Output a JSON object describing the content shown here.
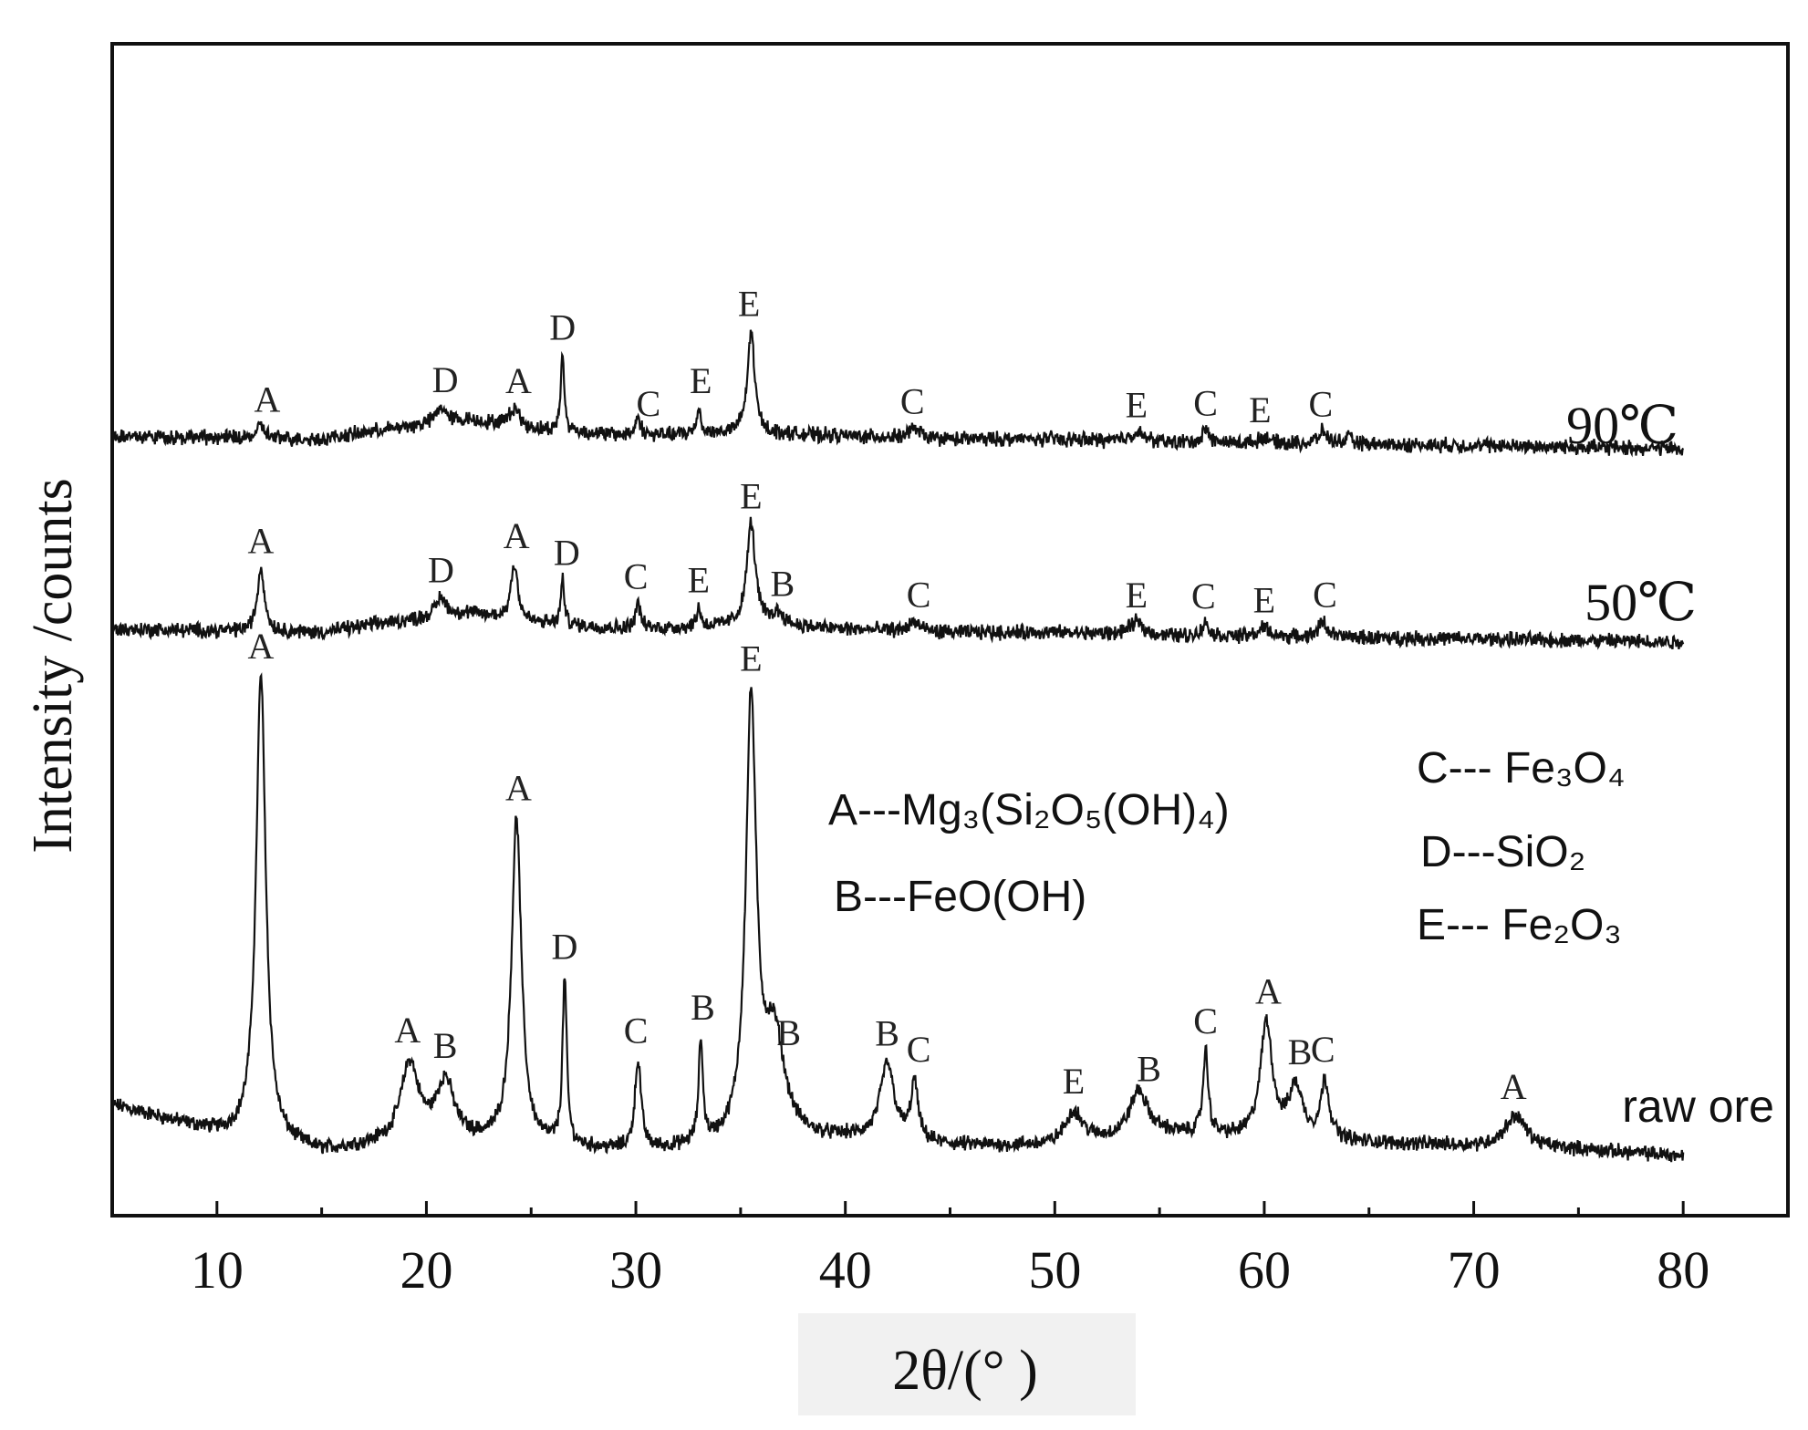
{
  "chart_data": {
    "type": "line",
    "xlabel": "2θ/(°  )",
    "ylabel": "Intensity /counts",
    "xlim": [
      5,
      85
    ],
    "xticks": [
      10,
      20,
      30,
      40,
      50,
      60,
      70,
      80
    ],
    "minor_xticks": [
      15,
      25,
      35,
      45,
      55,
      65,
      75
    ],
    "grid": false,
    "legend": [
      {
        "text": "A---Mg₃(Si₂O₅(OH)₄)"
      },
      {
        "text": "B---FeO(OH)"
      },
      {
        "text": "C--- Fe₃O₄"
      },
      {
        "text": "D---SiO₂"
      },
      {
        "text": "E--- Fe₂O₃"
      }
    ],
    "series": [
      {
        "name": "raw ore",
        "baseline": [
          [
            5,
            0.055
          ],
          [
            10,
            0.01
          ],
          [
            15,
            -0.02
          ],
          [
            20,
            0.0
          ],
          [
            25,
            -0.01
          ],
          [
            30,
            -0.02
          ],
          [
            35,
            -0.01
          ],
          [
            40,
            0.0
          ],
          [
            45,
            -0.01
          ],
          [
            50,
            -0.01
          ],
          [
            55,
            0.01
          ],
          [
            60,
            0.0
          ],
          [
            65,
            -0.005
          ],
          [
            70,
            -0.01
          ],
          [
            75,
            -0.015
          ],
          [
            80,
            -0.025
          ]
        ],
        "peaks": [
          [
            12.1,
            0.73,
            0.28
          ],
          [
            19.2,
            0.12,
            0.5
          ],
          [
            20.9,
            0.09,
            0.5
          ],
          [
            24.3,
            0.51,
            0.28
          ],
          [
            26.6,
            0.26,
            0.12
          ],
          [
            30.1,
            0.14,
            0.18
          ],
          [
            33.1,
            0.16,
            0.12
          ],
          [
            35.5,
            0.68,
            0.3
          ],
          [
            36.6,
            0.16,
            0.6
          ],
          [
            42.0,
            0.12,
            0.4
          ],
          [
            43.3,
            0.09,
            0.2
          ],
          [
            50.9,
            0.05,
            0.5
          ],
          [
            54.0,
            0.07,
            0.5
          ],
          [
            57.2,
            0.13,
            0.15
          ],
          [
            60.1,
            0.18,
            0.35
          ],
          [
            61.5,
            0.08,
            0.4
          ],
          [
            62.9,
            0.09,
            0.25
          ],
          [
            72.0,
            0.05,
            0.6
          ]
        ],
        "labels": [
          {
            "text": "A",
            "x": 12.1
          },
          {
            "text": "A",
            "x": 19.1
          },
          {
            "text": "B",
            "x": 20.9
          },
          {
            "text": "A",
            "x": 24.4
          },
          {
            "text": "D",
            "x": 26.6
          },
          {
            "text": "C",
            "x": 30.0
          },
          {
            "text": "B",
            "x": 33.2
          },
          {
            "text": "E",
            "x": 35.5
          },
          {
            "text": "B",
            "x": 37.3
          },
          {
            "text": "B",
            "x": 42.0
          },
          {
            "text": "C",
            "x": 43.5
          },
          {
            "text": "E",
            "x": 50.9
          },
          {
            "text": "B",
            "x": 54.5
          },
          {
            "text": "C",
            "x": 57.2
          },
          {
            "text": "A",
            "x": 60.2
          },
          {
            "text": "B",
            "x": 61.7
          },
          {
            "text": "C",
            "x": 62.8
          },
          {
            "text": "A",
            "x": 71.9
          }
        ]
      },
      {
        "name": "50℃",
        "baseline": [
          [
            5,
            0.0
          ],
          [
            15,
            -0.005
          ],
          [
            18,
            0.01
          ],
          [
            22,
            0.025
          ],
          [
            25,
            0.01
          ],
          [
            30,
            0.0
          ],
          [
            35,
            0.005
          ],
          [
            40,
            0.0
          ],
          [
            45,
            -0.005
          ],
          [
            50,
            -0.005
          ],
          [
            55,
            -0.01
          ],
          [
            60,
            -0.012
          ],
          [
            70,
            -0.015
          ],
          [
            80,
            -0.02
          ]
        ],
        "peaks": [
          [
            12.1,
            0.1,
            0.2
          ],
          [
            20.7,
            0.03,
            0.3
          ],
          [
            24.2,
            0.09,
            0.2
          ],
          [
            26.5,
            0.07,
            0.1
          ],
          [
            30.1,
            0.04,
            0.15
          ],
          [
            33.0,
            0.03,
            0.12
          ],
          [
            35.5,
            0.16,
            0.25
          ],
          [
            36.8,
            0.02,
            0.4
          ],
          [
            43.3,
            0.015,
            0.3
          ],
          [
            53.9,
            0.02,
            0.4
          ],
          [
            57.2,
            0.02,
            0.2
          ],
          [
            60.0,
            0.015,
            0.3
          ],
          [
            62.8,
            0.025,
            0.25
          ]
        ],
        "labels": [
          {
            "text": "A",
            "x": 12.1
          },
          {
            "text": "D",
            "x": 20.7
          },
          {
            "text": "A",
            "x": 24.3
          },
          {
            "text": "D",
            "x": 26.7
          },
          {
            "text": "C",
            "x": 30.0
          },
          {
            "text": "E",
            "x": 33.0
          },
          {
            "text": "E",
            "x": 35.5
          },
          {
            "text": "B",
            "x": 37.0
          },
          {
            "text": "C",
            "x": 43.5
          },
          {
            "text": "E",
            "x": 53.9
          },
          {
            "text": "C",
            "x": 57.1
          },
          {
            "text": "E",
            "x": 60.0
          },
          {
            "text": "C",
            "x": 62.9
          }
        ]
      },
      {
        "name": "90℃",
        "baseline": [
          [
            5,
            0.0
          ],
          [
            15,
            -0.005
          ],
          [
            18,
            0.01
          ],
          [
            22,
            0.025
          ],
          [
            25,
            0.01
          ],
          [
            30,
            0.0
          ],
          [
            35,
            0.005
          ],
          [
            40,
            0.0
          ],
          [
            45,
            -0.005
          ],
          [
            50,
            -0.005
          ],
          [
            55,
            -0.01
          ],
          [
            60,
            -0.012
          ],
          [
            70,
            -0.015
          ],
          [
            80,
            -0.02
          ]
        ],
        "peaks": [
          [
            12.1,
            0.02,
            0.2
          ],
          [
            20.7,
            0.025,
            0.3
          ],
          [
            24.2,
            0.03,
            0.3
          ],
          [
            26.5,
            0.12,
            0.1
          ],
          [
            30.1,
            0.03,
            0.15
          ],
          [
            33.0,
            0.04,
            0.12
          ],
          [
            35.5,
            0.16,
            0.2
          ],
          [
            43.3,
            0.015,
            0.3
          ],
          [
            53.9,
            0.015,
            0.4
          ],
          [
            57.2,
            0.02,
            0.2
          ],
          [
            60.0,
            0.01,
            0.3
          ],
          [
            62.8,
            0.02,
            0.25
          ],
          [
            64.0,
            0.01,
            0.2
          ]
        ],
        "labels": [
          {
            "text": "A",
            "x": 12.4
          },
          {
            "text": "D",
            "x": 20.9
          },
          {
            "text": "A",
            "x": 24.4
          },
          {
            "text": "D",
            "x": 26.5
          },
          {
            "text": "C",
            "x": 30.6
          },
          {
            "text": "E",
            "x": 33.1
          },
          {
            "text": "E",
            "x": 35.4
          },
          {
            "text": "C",
            "x": 43.2
          },
          {
            "text": "E",
            "x": 53.9
          },
          {
            "text": "C",
            "x": 57.2
          },
          {
            "text": "E",
            "x": 59.8
          },
          {
            "text": "C",
            "x": 62.7
          }
        ]
      }
    ]
  }
}
